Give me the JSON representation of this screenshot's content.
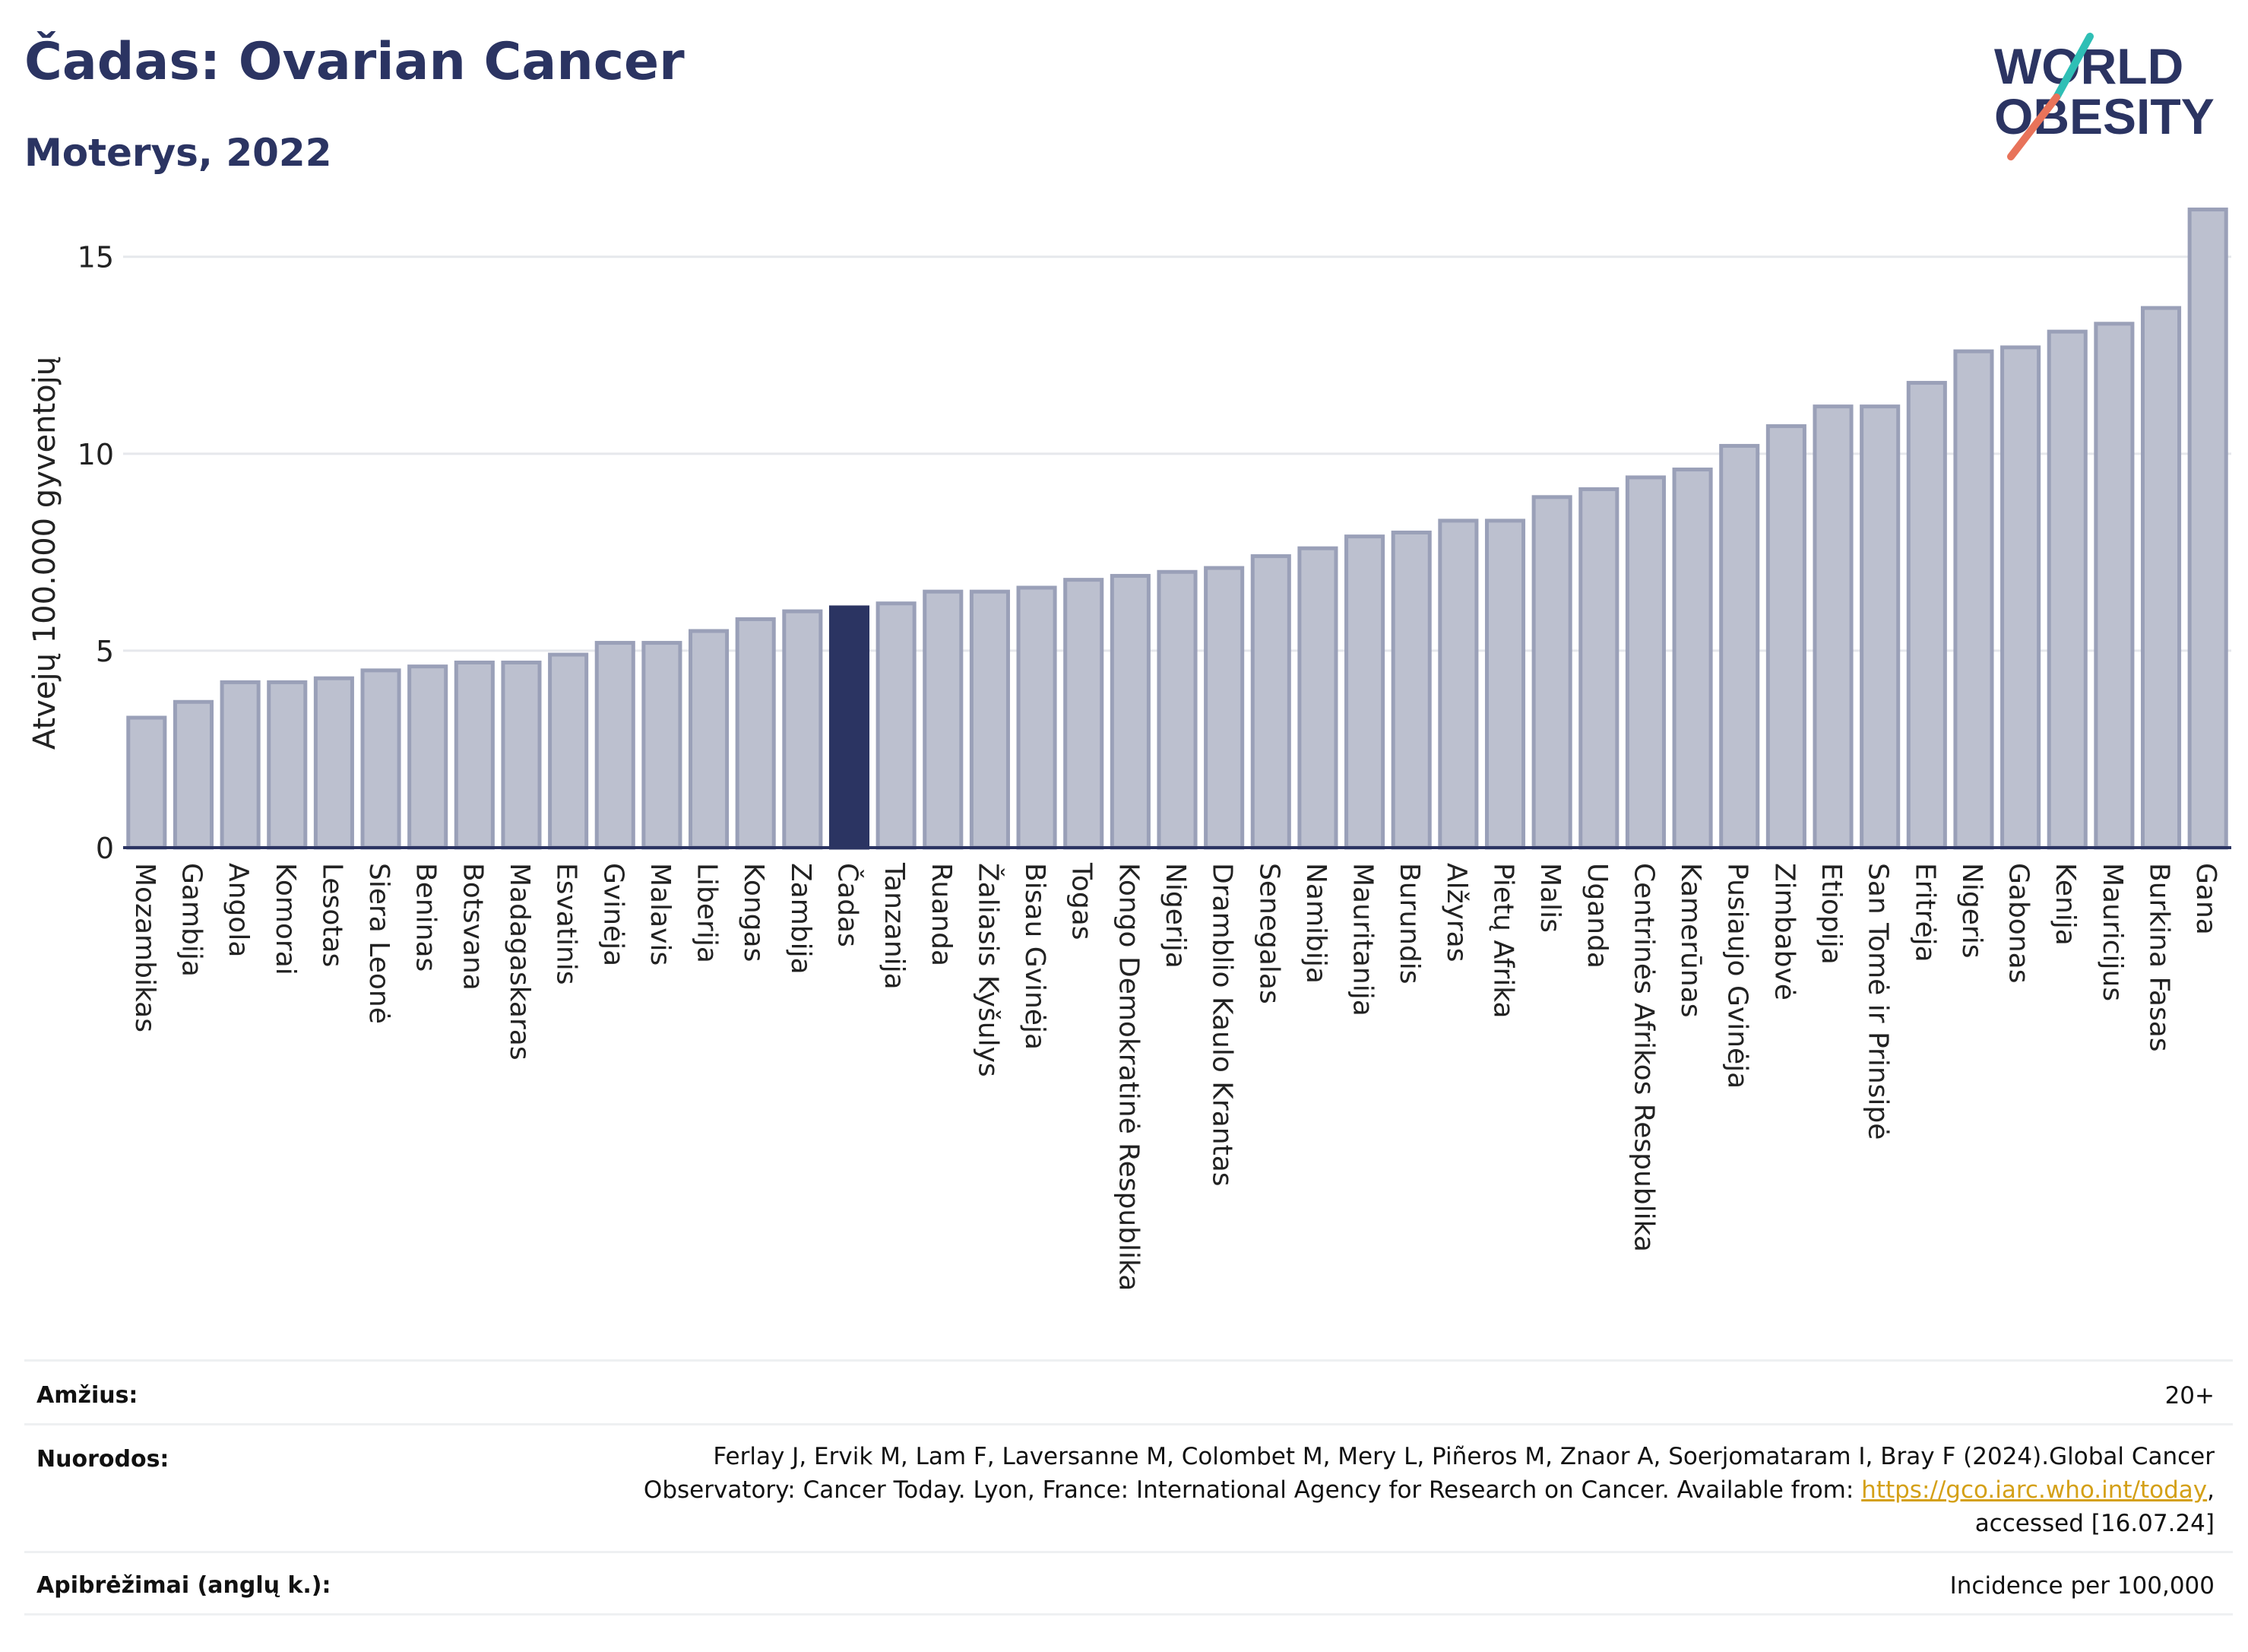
{
  "header": {
    "title": "Čadas: Ovarian Cancer",
    "subtitle": "Moterys, 2022"
  },
  "logo": {
    "line1": "WORLD",
    "line2": "OBESITY",
    "accent_teal": "#2fbfb5",
    "accent_coral": "#e8735a",
    "text_color": "#2b3462"
  },
  "chart_data": {
    "type": "bar",
    "ylabel": "Atvejų 100.000 gyventojų",
    "xlabel": "",
    "ylim": [
      0,
      16.5
    ],
    "yticks": [
      0,
      5,
      10,
      15
    ],
    "grid": true,
    "highlight_category": "Čadas",
    "colors": {
      "bar": "#bcc0cf",
      "bar_border": "#9aa0b8",
      "highlight": "#2b3462",
      "grid": "#e6e8ec",
      "axis": "#2b3462"
    },
    "categories": [
      "Mozambikas",
      "Gambija",
      "Angola",
      "Komorai",
      "Lesotas",
      "Siera Leonė",
      "Beninas",
      "Botsvana",
      "Madagaskaras",
      "Esvatinis",
      "Gvinėja",
      "Malavis",
      "Liberija",
      "Kongas",
      "Zambija",
      "Čadas",
      "Tanzanija",
      "Ruanda",
      "Žaliasis Kyšulys",
      "Bisau Gvinėja",
      "Togas",
      "Kongo Demokratinė Respublika",
      "Nigerija",
      "Dramblio Kaulo Krantas",
      "Senegalas",
      "Namibija",
      "Mauritanija",
      "Burundis",
      "Alžyras",
      "Pietų Afrika",
      "Malis",
      "Uganda",
      "Centrinės Afrikos Respublika",
      "Kamerūnas",
      "Pusiaujo Gvinėja",
      "Zimbabvė",
      "Etiopija",
      "San Tomė ir Prinsipė",
      "Eritrėja",
      "Nigeris",
      "Gabonas",
      "Kenija",
      "Mauricijus",
      "Burkina Fasas",
      "Gana"
    ],
    "values": [
      3.3,
      3.7,
      4.2,
      4.2,
      4.3,
      4.5,
      4.6,
      4.7,
      4.7,
      4.9,
      5.2,
      5.2,
      5.5,
      5.8,
      6.0,
      6.1,
      6.2,
      6.5,
      6.5,
      6.6,
      6.8,
      6.9,
      7.0,
      7.1,
      7.4,
      7.6,
      7.9,
      8.0,
      8.3,
      8.3,
      8.9,
      9.1,
      9.4,
      9.6,
      10.2,
      10.7,
      11.2,
      11.2,
      11.8,
      12.6,
      12.7,
      13.1,
      13.3,
      13.7,
      16.2
    ]
  },
  "info": {
    "age_label": "Amžius:",
    "age_value": "20+",
    "refs_label": "Nuorodos:",
    "refs_line1": "Ferlay J, Ervik M, Lam F, Laversanne M, Colombet M, Mery L, Piñeros M, Znaor A, Soerjomataram I, Bray F (2024).Global Cancer",
    "refs_line2_pre": "Observatory: Cancer Today. Lyon, France: International Agency for Research on Cancer. Available from: ",
    "refs_link": "https://gco.iarc.who.int/today",
    "refs_line2_post": ",",
    "refs_line3": "accessed [16.07.24]",
    "defs_label": "Apibrėžimai (anglų k.):",
    "defs_value": "Incidence per 100,000"
  }
}
